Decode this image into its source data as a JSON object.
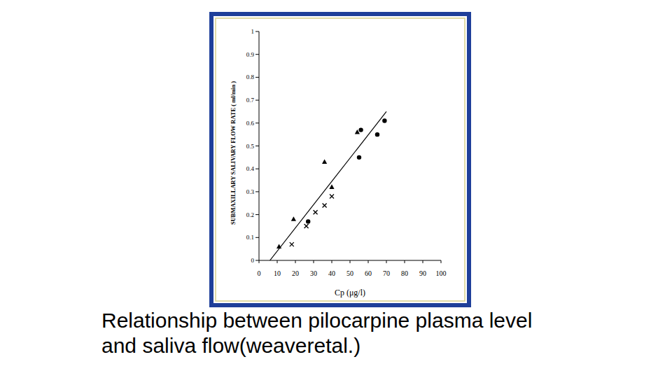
{
  "chart_data": {
    "type": "scatter",
    "title": "Relationship between pilocarpine plasma level and saliva flow(weaveretal.)",
    "xlabel": "Cp (μg/l)",
    "ylabel": "SUBMAXILLARY SALIVARY FLOW RATE ( ml/min )",
    "xlim": [
      0,
      100
    ],
    "xticks": [
      0,
      10,
      20,
      30,
      40,
      50,
      60,
      70,
      80,
      90,
      100
    ],
    "ylim": [
      0,
      1
    ],
    "yticks": [
      0,
      0.1,
      0.2,
      0.3,
      0.4,
      0.5,
      0.6,
      0.7,
      0.8,
      0.9,
      1
    ],
    "grid": false,
    "series": [
      {
        "type": "scatter",
        "marker": "triangle",
        "color": "#000000",
        "x": [
          11,
          19,
          36,
          40,
          54
        ],
        "values": [
          0.06,
          0.18,
          0.43,
          0.32,
          0.56
        ]
      },
      {
        "type": "scatter",
        "marker": "x",
        "color": "#000000",
        "x": [
          18,
          26,
          31,
          36,
          40
        ],
        "values": [
          0.07,
          0.15,
          0.21,
          0.24,
          0.28
        ]
      },
      {
        "type": "scatter",
        "marker": "circle",
        "color": "#000000",
        "x": [
          27,
          55,
          56,
          65,
          69
        ],
        "values": [
          0.17,
          0.45,
          0.57,
          0.55,
          0.61
        ]
      },
      {
        "type": "line",
        "line_style": "solid",
        "color": "#000000",
        "x": [
          6,
          70
        ],
        "values": [
          0,
          0.65
        ]
      }
    ]
  }
}
